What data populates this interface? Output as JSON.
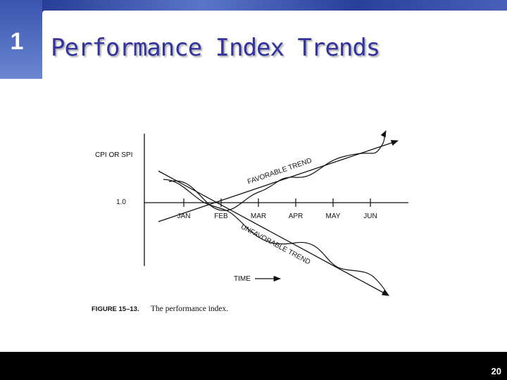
{
  "slide_number": "1",
  "title": "Performance Index Trends",
  "figure": {
    "y_axis_label": "CPI OR SPI",
    "reference_label": "1.0",
    "months": [
      "JAN",
      "FEB",
      "MAR",
      "APR",
      "MAY",
      "JUN"
    ],
    "favorable_label": "FAVORABLE TREND",
    "unfavorable_label": "UNFAVORABLE TREND",
    "time_label": "TIME",
    "caption_number": "FIGURE 15–13.",
    "caption_text": "The performance index."
  },
  "page_number": "20"
}
